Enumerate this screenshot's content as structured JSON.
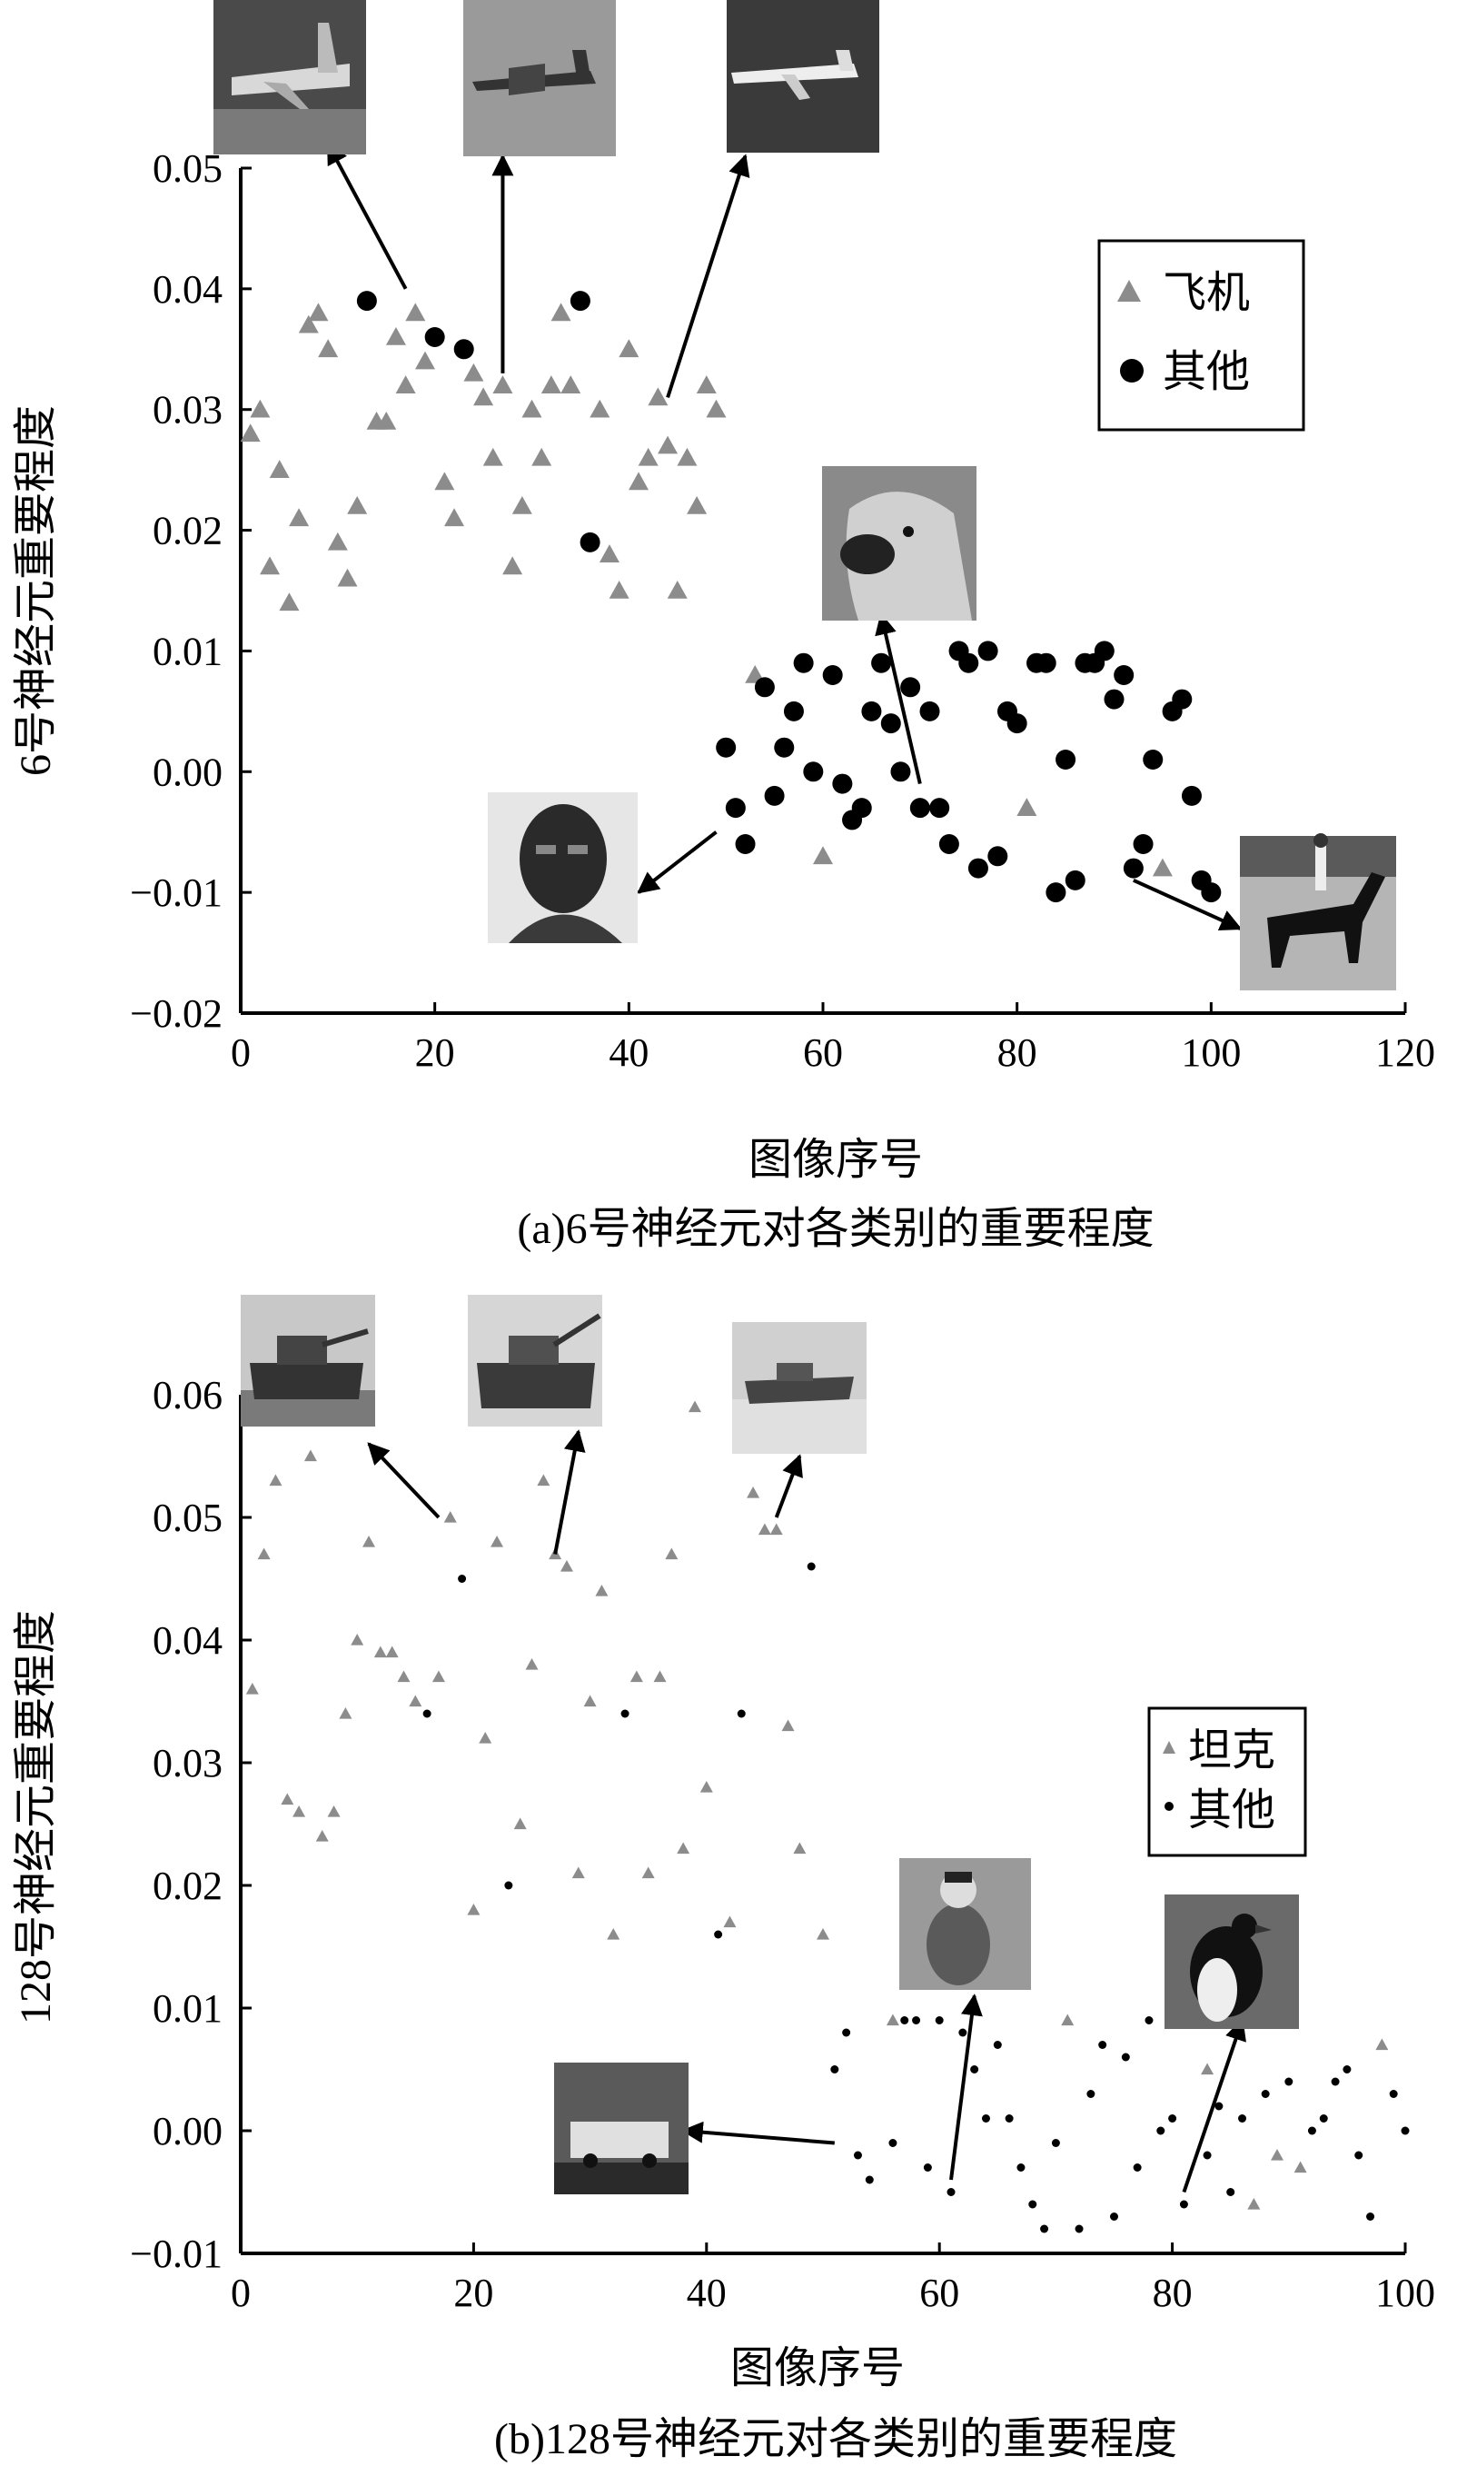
{
  "chart_data": [
    {
      "type": "scatter",
      "caption": "(a)6号神经元对各类别的重要程度",
      "xlabel": "图像序号",
      "ylabel": "6号神经元重要程度",
      "xlim": [
        0,
        120
      ],
      "ylim": [
        -0.02,
        0.05
      ],
      "xticks": [
        "0",
        "20",
        "40",
        "60",
        "80",
        "100",
        "120"
      ],
      "yticks": [
        "−0.02",
        "−0.01",
        "0.00",
        "0.01",
        "0.02",
        "0.03",
        "0.04",
        "0.05"
      ],
      "legend_position": "top-right",
      "series": [
        {
          "name": "飞机",
          "marker": "triangle",
          "color": "#8c8c8c",
          "points": [
            [
              1,
              0.028
            ],
            [
              2,
              0.03
            ],
            [
              3,
              0.017
            ],
            [
              4,
              0.025
            ],
            [
              5,
              0.014
            ],
            [
              6,
              0.021
            ],
            [
              7,
              0.037
            ],
            [
              8,
              0.038
            ],
            [
              9,
              0.035
            ],
            [
              10,
              0.019
            ],
            [
              11,
              0.016
            ],
            [
              12,
              0.022
            ],
            [
              14,
              0.029
            ],
            [
              15,
              0.029
            ],
            [
              16,
              0.036
            ],
            [
              17,
              0.032
            ],
            [
              18,
              0.038
            ],
            [
              19,
              0.034
            ],
            [
              21,
              0.024
            ],
            [
              22,
              0.021
            ],
            [
              24,
              0.033
            ],
            [
              25,
              0.031
            ],
            [
              26,
              0.026
            ],
            [
              27,
              0.032
            ],
            [
              28,
              0.017
            ],
            [
              29,
              0.022
            ],
            [
              30,
              0.03
            ],
            [
              31,
              0.026
            ],
            [
              32,
              0.032
            ],
            [
              33,
              0.038
            ],
            [
              34,
              0.032
            ],
            [
              37,
              0.03
            ],
            [
              38,
              0.018
            ],
            [
              39,
              0.015
            ],
            [
              40,
              0.035
            ],
            [
              41,
              0.024
            ],
            [
              42,
              0.026
            ],
            [
              43,
              0.031
            ],
            [
              44,
              0.027
            ],
            [
              45,
              0.015
            ],
            [
              46,
              0.026
            ],
            [
              47,
              0.022
            ],
            [
              48,
              0.032
            ],
            [
              49,
              0.03
            ],
            [
              53,
              0.008
            ],
            [
              60,
              -0.007
            ],
            [
              81,
              -0.003
            ],
            [
              95,
              -0.008
            ]
          ]
        },
        {
          "name": "其他",
          "marker": "circle",
          "color": "#000000",
          "points": [
            [
              13,
              0.039
            ],
            [
              20,
              0.036
            ],
            [
              23,
              0.035
            ],
            [
              35,
              0.039
            ],
            [
              36,
              0.019
            ],
            [
              50,
              0.002
            ],
            [
              51,
              -0.003
            ],
            [
              52,
              -0.006
            ],
            [
              54,
              0.007
            ],
            [
              55,
              -0.002
            ],
            [
              56,
              0.002
            ],
            [
              57,
              0.005
            ],
            [
              58,
              0.009
            ],
            [
              59,
              0.0
            ],
            [
              61,
              0.008
            ],
            [
              62,
              -0.001
            ],
            [
              63,
              -0.004
            ],
            [
              64,
              -0.003
            ],
            [
              65,
              0.005
            ],
            [
              66,
              0.009
            ],
            [
              67,
              0.004
            ],
            [
              68,
              0.0
            ],
            [
              69,
              0.007
            ],
            [
              70,
              -0.003
            ],
            [
              71,
              0.005
            ],
            [
              72,
              -0.003
            ],
            [
              73,
              -0.006
            ],
            [
              74,
              0.01
            ],
            [
              75,
              0.009
            ],
            [
              76,
              -0.008
            ],
            [
              77,
              0.01
            ],
            [
              78,
              -0.007
            ],
            [
              79,
              0.005
            ],
            [
              80,
              0.004
            ],
            [
              82,
              0.009
            ],
            [
              83,
              0.009
            ],
            [
              84,
              -0.01
            ],
            [
              85,
              0.001
            ],
            [
              86,
              -0.009
            ],
            [
              87,
              0.009
            ],
            [
              88,
              0.009
            ],
            [
              89,
              0.01
            ],
            [
              90,
              0.006
            ],
            [
              91,
              0.008
            ],
            [
              92,
              -0.008
            ],
            [
              93,
              -0.006
            ],
            [
              94,
              0.001
            ],
            [
              96,
              0.005
            ],
            [
              97,
              0.006
            ],
            [
              98,
              -0.002
            ],
            [
              99,
              -0.009
            ],
            [
              100,
              -0.01
            ]
          ]
        }
      ],
      "annotations": [
        {
          "icon": "airplane-photo-icon",
          "from": [
            17,
            0.04
          ],
          "to": [
            9,
            0.052
          ]
        },
        {
          "icon": "airplane-photo-icon",
          "from": [
            27,
            0.033
          ],
          "to": [
            27,
            0.051
          ]
        },
        {
          "icon": "airplane-photo-icon",
          "from": [
            44,
            0.031
          ],
          "to": [
            52,
            0.051
          ]
        },
        {
          "icon": "dog-photo-icon",
          "from": [
            70,
            -0.001
          ],
          "to": [
            66,
            0.013
          ]
        },
        {
          "icon": "person-photo-icon",
          "from": [
            49,
            -0.005
          ],
          "to": [
            41,
            -0.01
          ]
        },
        {
          "icon": "horse-rider-photo-icon",
          "from": [
            92,
            -0.009
          ],
          "to": [
            103,
            -0.013
          ]
        }
      ]
    },
    {
      "type": "scatter",
      "caption": "(b)128号神经元对各类别的重要程度",
      "xlabel": "图像序号",
      "ylabel": "128号神经元重要程度",
      "xlim": [
        0,
        100
      ],
      "ylim": [
        -0.01,
        0.06
      ],
      "xticks": [
        "0",
        "20",
        "40",
        "60",
        "80",
        "100"
      ],
      "yticks": [
        "−0.01",
        "0.00",
        "0.01",
        "0.02",
        "0.03",
        "0.04",
        "0.05",
        "0.06"
      ],
      "legend_position": "right",
      "series": [
        {
          "name": "坦克",
          "marker": "triangle",
          "color": "#8c8c8c",
          "points": [
            [
              1,
              0.036
            ],
            [
              2,
              0.047
            ],
            [
              3,
              0.053
            ],
            [
              4,
              0.027
            ],
            [
              5,
              0.026
            ],
            [
              6,
              0.055
            ],
            [
              7,
              0.024
            ],
            [
              8,
              0.026
            ],
            [
              9,
              0.034
            ],
            [
              10,
              0.04
            ],
            [
              11,
              0.048
            ],
            [
              12,
              0.039
            ],
            [
              13,
              0.039
            ],
            [
              14,
              0.037
            ],
            [
              15,
              0.035
            ],
            [
              17,
              0.037
            ],
            [
              18,
              0.05
            ],
            [
              20,
              0.018
            ],
            [
              21,
              0.032
            ],
            [
              22,
              0.048
            ],
            [
              24,
              0.025
            ],
            [
              25,
              0.038
            ],
            [
              26,
              0.053
            ],
            [
              27,
              0.047
            ],
            [
              28,
              0.046
            ],
            [
              29,
              0.021
            ],
            [
              30,
              0.035
            ],
            [
              31,
              0.044
            ],
            [
              32,
              0.016
            ],
            [
              34,
              0.037
            ],
            [
              35,
              0.021
            ],
            [
              36,
              0.037
            ],
            [
              37,
              0.047
            ],
            [
              38,
              0.023
            ],
            [
              39,
              0.059
            ],
            [
              40,
              0.028
            ],
            [
              42,
              0.017
            ],
            [
              44,
              0.052
            ],
            [
              45,
              0.049
            ],
            [
              46,
              0.049
            ],
            [
              47,
              0.033
            ],
            [
              48,
              0.023
            ],
            [
              50,
              0.016
            ],
            [
              56,
              0.009
            ],
            [
              71,
              0.009
            ],
            [
              83,
              0.005
            ],
            [
              87,
              -0.006
            ],
            [
              89,
              -0.002
            ],
            [
              91,
              -0.003
            ],
            [
              98,
              0.007
            ]
          ]
        },
        {
          "name": "其他",
          "marker": "dot",
          "color": "#000000",
          "points": [
            [
              16,
              0.034
            ],
            [
              19,
              0.045
            ],
            [
              23,
              0.02
            ],
            [
              33,
              0.034
            ],
            [
              41,
              0.016
            ],
            [
              43,
              0.034
            ],
            [
              49,
              0.046
            ],
            [
              51,
              0.005
            ],
            [
              52,
              0.008
            ],
            [
              53,
              -0.002
            ],
            [
              54,
              -0.004
            ],
            [
              56,
              -0.001
            ],
            [
              57,
              0.009
            ],
            [
              58,
              0.009
            ],
            [
              59,
              -0.003
            ],
            [
              60,
              0.009
            ],
            [
              61,
              -0.005
            ],
            [
              62,
              0.008
            ],
            [
              63,
              0.005
            ],
            [
              64,
              0.001
            ],
            [
              65,
              0.007
            ],
            [
              66,
              0.001
            ],
            [
              67,
              -0.003
            ],
            [
              68,
              -0.006
            ],
            [
              69,
              -0.008
            ],
            [
              70,
              -0.001
            ],
            [
              72,
              -0.008
            ],
            [
              73,
              0.003
            ],
            [
              74,
              0.007
            ],
            [
              75,
              -0.007
            ],
            [
              76,
              0.006
            ],
            [
              77,
              -0.003
            ],
            [
              78,
              0.009
            ],
            [
              79,
              0.0
            ],
            [
              80,
              0.001
            ],
            [
              81,
              -0.006
            ],
            [
              82,
              0.009
            ],
            [
              83,
              -0.002
            ],
            [
              84,
              0.002
            ],
            [
              85,
              -0.005
            ],
            [
              86,
              0.001
            ],
            [
              88,
              0.003
            ],
            [
              90,
              0.004
            ],
            [
              92,
              0.0
            ],
            [
              93,
              0.001
            ],
            [
              94,
              0.004
            ],
            [
              95,
              0.005
            ],
            [
              96,
              -0.002
            ],
            [
              97,
              -0.007
            ],
            [
              99,
              0.003
            ],
            [
              100,
              0.0
            ]
          ]
        }
      ],
      "annotations": [
        {
          "icon": "tank-photo-icon",
          "from": [
            17,
            0.05
          ],
          "to": [
            11,
            0.056
          ]
        },
        {
          "icon": "tank-photo-icon",
          "from": [
            27,
            0.047
          ],
          "to": [
            29,
            0.057
          ]
        },
        {
          "icon": "tank-photo-icon",
          "from": [
            46,
            0.05
          ],
          "to": [
            48,
            0.055
          ]
        },
        {
          "icon": "bus-photo-icon",
          "from": [
            51,
            -0.001
          ],
          "to": [
            38,
            0.0
          ]
        },
        {
          "icon": "monkey-photo-icon",
          "from": [
            61,
            -0.004
          ],
          "to": [
            63,
            0.011
          ]
        },
        {
          "icon": "bird-photo-icon",
          "from": [
            81,
            -0.005
          ],
          "to": [
            86,
            0.009
          ]
        }
      ]
    }
  ]
}
